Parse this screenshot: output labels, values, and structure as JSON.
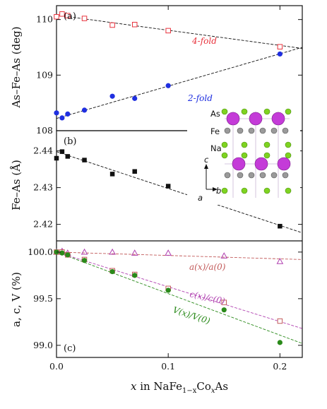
{
  "figure": {
    "x_label_html": "x in NaFe1−xCoxAs",
    "x_label_parts": {
      "x": "x",
      "in": " in NaFe",
      "sub": "1−x",
      "co": "Co",
      "subx": "x",
      "as": "As"
    },
    "x_ticks": [
      "0.0",
      "0.1",
      "0.2"
    ],
    "colors": {
      "red": "#e8323c",
      "blue": "#1f2fe0",
      "black": "#111111",
      "purple": "#b040b0",
      "green": "#2a8a1a",
      "brown": "#c25a5a"
    }
  },
  "crystal_labels": {
    "as": "As",
    "fe": "Fe",
    "na": "Na",
    "c": "c",
    "a": "a",
    "b": "b"
  },
  "chart_data": [
    {
      "type": "scatter",
      "panel_label": "(a)",
      "ylabel": "As–Fe–As (deg)",
      "xlim": [
        0,
        0.22
      ],
      "ylim": [
        108.0,
        110.25
      ],
      "y_ticks": [
        "108",
        "109",
        "110"
      ],
      "series": [
        {
          "name": "4-fold",
          "marker": "open-square",
          "color": "#e8323c",
          "x": [
            0.0,
            0.005,
            0.01,
            0.025,
            0.05,
            0.07,
            0.1,
            0.2
          ],
          "y": [
            110.05,
            110.1,
            110.07,
            110.02,
            109.9,
            109.91,
            109.8,
            109.51
          ]
        },
        {
          "name": "2-fold",
          "marker": "filled-circle",
          "color": "#1f2fe0",
          "x": [
            0.0,
            0.005,
            0.01,
            0.025,
            0.05,
            0.07,
            0.1,
            0.2
          ],
          "y": [
            108.32,
            108.23,
            108.3,
            108.37,
            108.62,
            108.58,
            108.81,
            109.38
          ]
        }
      ],
      "fit_lines": [
        {
          "x": [
            0.0,
            0.22
          ],
          "y": [
            110.08,
            109.48
          ]
        },
        {
          "x": [
            0.0,
            0.22
          ],
          "y": [
            108.22,
            109.5
          ]
        }
      ]
    },
    {
      "type": "scatter",
      "panel_label": "(b)",
      "ylabel": "Fe–As (Å)",
      "xlim": [
        0,
        0.22
      ],
      "ylim": [
        2.4155,
        2.4455
      ],
      "y_ticks": [
        "2.42",
        "2.43",
        "2.44"
      ],
      "series": [
        {
          "marker": "filled-square",
          "color": "#111111",
          "x": [
            0.0,
            0.005,
            0.01,
            0.025,
            0.05,
            0.07,
            0.1,
            0.2
          ],
          "y": [
            2.438,
            2.4398,
            2.4385,
            2.4375,
            2.4337,
            2.4344,
            2.4304,
            2.4195
          ]
        }
      ],
      "fit_lines": [
        {
          "x": [
            0.0,
            0.22
          ],
          "y": [
            2.4398,
            2.4177
          ]
        }
      ]
    },
    {
      "type": "scatter",
      "panel_label": "(c)",
      "ylabel": "a, c, V (%)",
      "xlim": [
        0,
        0.22
      ],
      "ylim": [
        98.87,
        100.12
      ],
      "y_ticks": [
        "99.0",
        "99.5",
        "100.0"
      ],
      "series": [
        {
          "name": "a(x)/a(0)",
          "marker": "open-triangle",
          "color": "#b040b0",
          "x": [
            0.0,
            0.005,
            0.01,
            0.025,
            0.05,
            0.07,
            0.1,
            0.15,
            0.2
          ],
          "y": [
            100.0,
            100.01,
            99.99,
            100.0,
            100.0,
            99.99,
            99.99,
            99.96,
            99.9
          ]
        },
        {
          "name": "c(x)/c(0)",
          "marker": "open-square",
          "color": "#c25a5a",
          "x": [
            0.0,
            0.005,
            0.01,
            0.025,
            0.05,
            0.07,
            0.1,
            0.15,
            0.2
          ],
          "y": [
            100.0,
            100.0,
            99.97,
            99.92,
            99.8,
            99.76,
            99.61,
            99.46,
            99.26
          ]
        },
        {
          "name": "V(x)/V(0)",
          "marker": "filled-circle",
          "color": "#2a8a1a",
          "x": [
            0.0,
            0.005,
            0.01,
            0.025,
            0.05,
            0.07,
            0.1,
            0.15,
            0.2
          ],
          "y": [
            100.0,
            99.99,
            99.97,
            99.91,
            99.79,
            99.75,
            99.59,
            99.38,
            99.03
          ]
        }
      ],
      "fit_lines": [
        {
          "color": "#c25a5a",
          "x": [
            0.0,
            0.22
          ],
          "y": [
            100.0,
            99.92
          ]
        },
        {
          "color": "#b040b0",
          "x": [
            0.0,
            0.22
          ],
          "y": [
            100.0,
            99.18
          ]
        },
        {
          "color": "#2a8a1a",
          "x": [
            0.0,
            0.22
          ],
          "y": [
            100.0,
            99.02
          ]
        }
      ]
    }
  ]
}
